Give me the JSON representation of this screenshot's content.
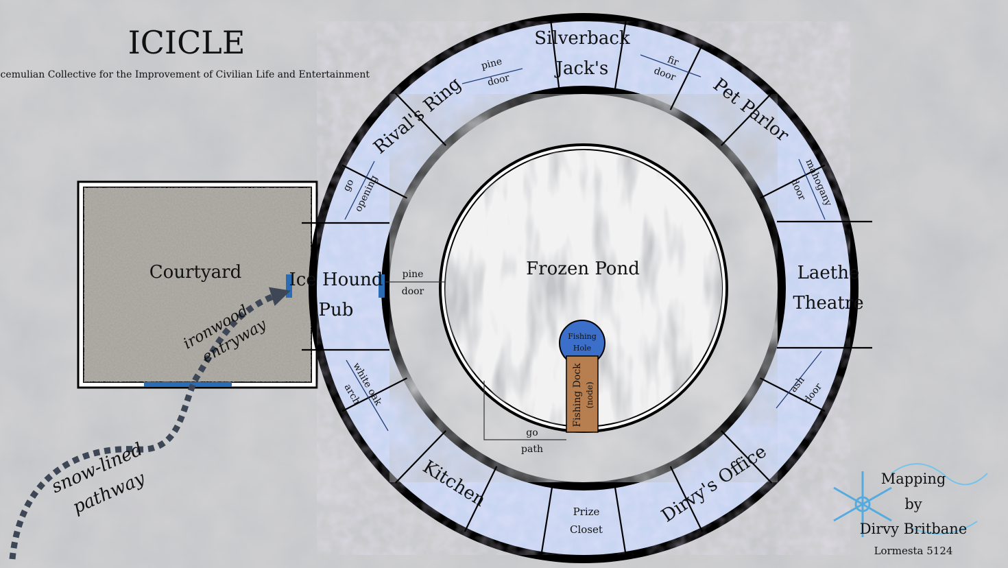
{
  "title": "ICICLE",
  "subtitle": "Icemulian Collective for the Improvement of Civilian Life and Entertainment",
  "rooms": {
    "silverback": [
      "Silverback",
      "Jack's"
    ],
    "pet_parlor": "Pet Parlor",
    "laethe": [
      "Laethe",
      "Theatre"
    ],
    "dirvys_office": "Dirvy's Office",
    "prize_closet": [
      "Prize",
      "Closet"
    ],
    "kitchen": "Kitchen",
    "ice_hound": [
      "Ice Hound",
      "Pub"
    ],
    "rivals_ring": "Rival's Ring",
    "courtyard": "Courtyard",
    "frozen_pond": "Frozen Pond",
    "fishing_hole": [
      "Fishing",
      "Hole"
    ],
    "fishing_dock": [
      "Fishing Dock",
      "(node)"
    ]
  },
  "exits": {
    "pine_door_top": [
      "pine",
      "door"
    ],
    "fir_door": [
      "fir",
      "door"
    ],
    "mahogany_door": [
      "mahogany",
      "door"
    ],
    "ash_door": [
      "ash",
      "door"
    ],
    "white_oak_arch": [
      "white oak",
      "arch"
    ],
    "go_opening": [
      "go",
      "opening"
    ],
    "pine_door_pub": [
      "pine",
      "door"
    ],
    "go_path": [
      "go",
      "path"
    ],
    "ironwood_entryway": [
      "ironwood",
      "entryway"
    ],
    "snow_lined_pathway": [
      "snow-lined",
      "pathway"
    ]
  },
  "credit": {
    "line1": "Mapping",
    "line2": "by",
    "line3": "Dirvy Britbane",
    "date": "Lormesta 5124"
  },
  "colors": {
    "ring_fill": "#c9d6f2",
    "ring_stroke": "#000000",
    "door_blue": "#2a6db5",
    "hole_blue": "#3b6fc9",
    "dock_wood": "#b77f4f",
    "path_dots": "#3d4756"
  }
}
